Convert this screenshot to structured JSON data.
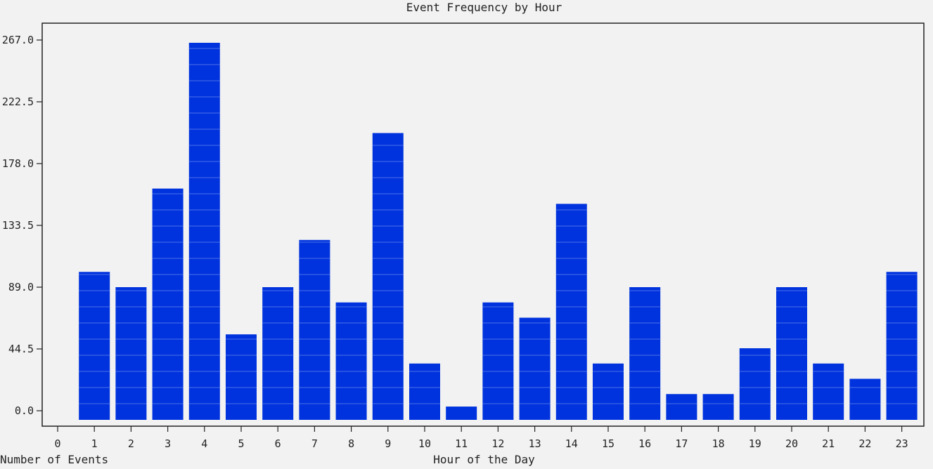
{
  "chart_data": {
    "type": "bar",
    "title": "Event Frequency by Hour",
    "xlabel": "Hour of the Day",
    "ylabel": "Number of Events",
    "categories": [
      "0",
      "1",
      "2",
      "3",
      "4",
      "5",
      "6",
      "7",
      "8",
      "9",
      "10",
      "11",
      "12",
      "13",
      "14",
      "15",
      "16",
      "17",
      "18",
      "19",
      "20",
      "21",
      "22",
      "23"
    ],
    "values": [
      0,
      100,
      89,
      160,
      265,
      55,
      89,
      123,
      78,
      200,
      34,
      3,
      78,
      67,
      149,
      34,
      89,
      12,
      12,
      45,
      89,
      34,
      23,
      100
    ],
    "yticks": [
      "0.0",
      "44.5",
      "89.0",
      "133.5",
      "178.0",
      "222.5",
      "267.0"
    ],
    "ylim": [
      0,
      267
    ],
    "bar_color": "#0033dd",
    "stripe_color": "#4c6fe8"
  }
}
